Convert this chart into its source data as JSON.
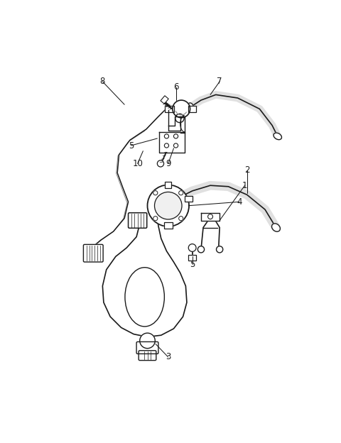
{
  "background_color": "#ffffff",
  "line_color": "#1a1a1a",
  "fig_width": 4.8,
  "fig_height": 6.24,
  "dpi": 100,
  "label_fontsize": 8.5,
  "callouts": [
    [
      "1",
      3.68,
      3.82,
      3.38,
      3.98
    ],
    [
      "2",
      3.72,
      4.1,
      3.25,
      3.8
    ],
    [
      "3",
      2.28,
      1.05,
      2.05,
      1.28
    ],
    [
      "4",
      3.58,
      3.55,
      2.62,
      3.52
    ],
    [
      "5",
      1.58,
      4.55,
      2.08,
      4.72
    ],
    [
      "5",
      2.72,
      2.38,
      2.55,
      2.58
    ],
    [
      "6",
      2.42,
      5.62,
      2.42,
      5.42
    ],
    [
      "7",
      3.22,
      5.72,
      3.05,
      5.48
    ],
    [
      "8",
      1.08,
      5.72,
      1.48,
      5.38
    ],
    [
      "9",
      2.18,
      4.18,
      2.25,
      4.08
    ],
    [
      "10",
      1.68,
      4.18,
      1.72,
      4.08
    ]
  ]
}
